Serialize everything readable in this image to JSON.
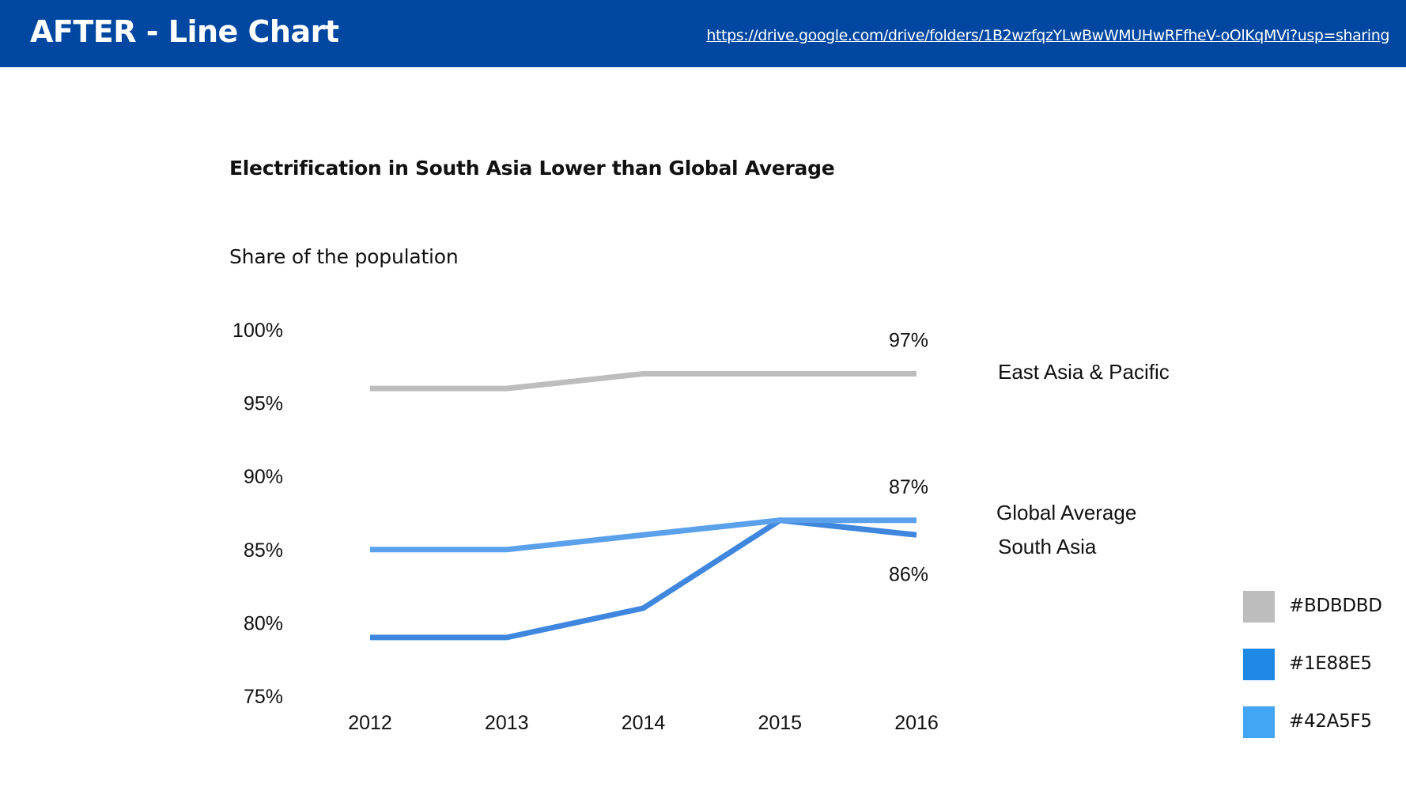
{
  "header": {
    "title": "AFTER - Line Chart",
    "link": "https://drive.google.com/drive/folders/1B2wzfqzYLwBwWMUHwRFfheV-oOlKqMVi?usp=sharing",
    "background_color": "#0047A1"
  },
  "chart_data": {
    "type": "line",
    "title": "Electrification in South Asia Lower than Global Average",
    "subtitle": "Share of the population",
    "xlabel": "",
    "ylabel": "Share of the population",
    "x": [
      "2012",
      "2013",
      "2014",
      "2015",
      "2016"
    ],
    "ylim": [
      75,
      100
    ],
    "yticks": [
      100,
      95,
      90,
      85,
      80,
      75
    ],
    "ytick_labels": [
      "100%",
      "95%",
      "90%",
      "85%",
      "80%",
      "75%"
    ],
    "grid": false,
    "legend": "right (direct labels)",
    "series": [
      {
        "name": "East Asia & Pacific",
        "color": "#BDBDBD",
        "values": [
          96,
          96,
          97,
          97,
          97
        ],
        "end_label": "97%",
        "end_label_position": "above"
      },
      {
        "name": "Global Average",
        "color": "#5AA0EA",
        "values": [
          85,
          85,
          86,
          87,
          87
        ],
        "end_label": "87%",
        "end_label_position": "above"
      },
      {
        "name": "South Asia",
        "color": "#3F87DE",
        "values": [
          79,
          79,
          81,
          87,
          86
        ],
        "end_label": "86%",
        "end_label_position": "below"
      }
    ]
  },
  "legend_palette": [
    {
      "label": "#BDBDBD",
      "color": "#BDBDBD"
    },
    {
      "label": "#1E88E5",
      "color": "#1E88E5"
    },
    {
      "label": "#42A5F5",
      "color": "#42A5F5"
    }
  ]
}
